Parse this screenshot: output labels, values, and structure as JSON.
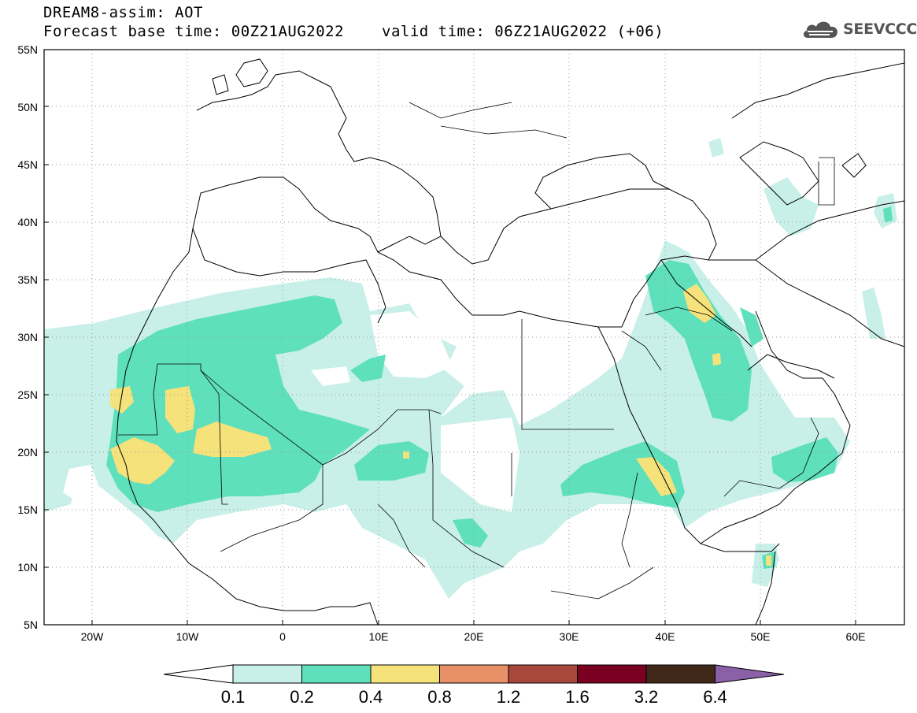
{
  "title": {
    "line1": "DREAM8-assim: AOT",
    "line2": "Forecast base time: 00Z21AUG2022",
    "line3": "valid time: 06Z21AUG2022 (+06)"
  },
  "logo": {
    "text": "SEEVCCC",
    "icon": "cloud-icon"
  },
  "axes": {
    "lat_labels": [
      "55N",
      "50N",
      "45N",
      "40N",
      "35N",
      "30N",
      "25N",
      "20N",
      "15N",
      "10N",
      "5N"
    ],
    "lon_labels": [
      "20W",
      "10W",
      "0",
      "10E",
      "20E",
      "30E",
      "40E",
      "50E",
      "60E"
    ]
  },
  "colorbar": {
    "labels": [
      "0.1",
      "0.2",
      "0.4",
      "0.8",
      "1.2",
      "1.6",
      "3.2",
      "6.4"
    ],
    "colors": [
      "#ffffff",
      "#c8f0e8",
      "#5ee0bd",
      "#f5e27a",
      "#e89068",
      "#a8473c",
      "#7a0022",
      "#3f2818",
      "#8a60a6"
    ]
  }
}
